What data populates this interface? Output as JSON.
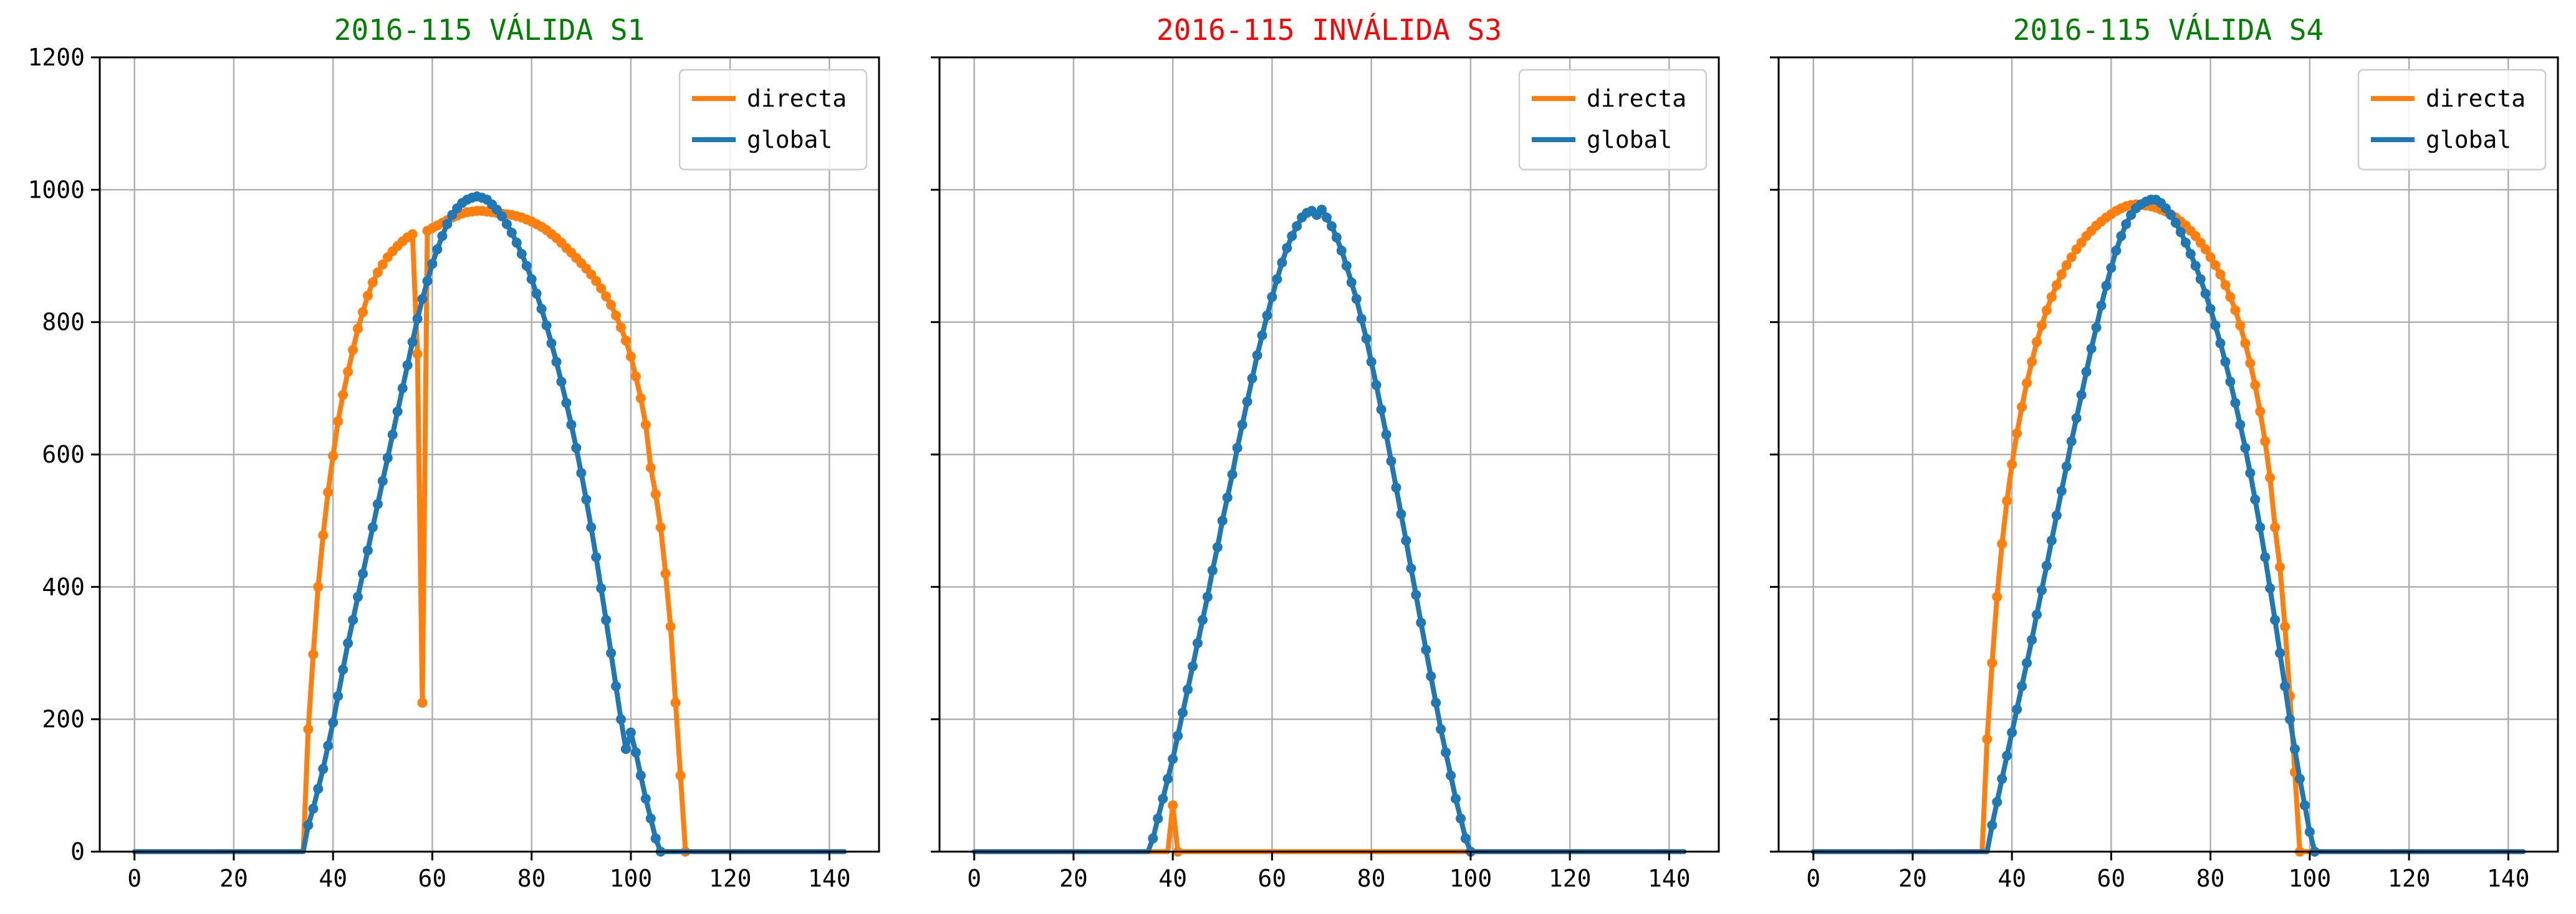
{
  "colors": {
    "directa": "#ff7f0e",
    "global": "#1f77b4",
    "valid": "#008000",
    "invalid": "#ff0000",
    "grid": "#b0b0b0"
  },
  "chart_data": [
    {
      "type": "line",
      "title": "2016-115 VÁLIDA S1",
      "title_color": "#008000",
      "xlabel": "",
      "ylabel": "",
      "xlim": [
        -7,
        150
      ],
      "ylim": [
        0,
        1200
      ],
      "xticks": [
        0,
        20,
        40,
        60,
        80,
        100,
        120,
        140
      ],
      "yticks": [
        0,
        200,
        400,
        600,
        800,
        1000,
        1200
      ],
      "grid": true,
      "legend": "top-right",
      "series": [
        {
          "name": "directa",
          "color": "#ff7f0e",
          "x": [
            0,
            34,
            35,
            36,
            37,
            38,
            39,
            40,
            41,
            42,
            43,
            44,
            45,
            46,
            47,
            48,
            49,
            50,
            51,
            52,
            53,
            54,
            55,
            56,
            57,
            58,
            59,
            60,
            61,
            62,
            63,
            64,
            65,
            66,
            67,
            68,
            69,
            70,
            71,
            72,
            73,
            74,
            75,
            76,
            77,
            78,
            79,
            80,
            81,
            82,
            83,
            84,
            85,
            86,
            87,
            88,
            89,
            90,
            91,
            92,
            93,
            94,
            95,
            96,
            97,
            98,
            99,
            100,
            101,
            102,
            103,
            104,
            105,
            106,
            107,
            108,
            109,
            110,
            111,
            112,
            113,
            114,
            115,
            143
          ],
          "y": [
            0,
            0,
            185,
            298,
            400,
            478,
            543,
            598,
            650,
            690,
            725,
            758,
            790,
            815,
            840,
            860,
            875,
            887,
            898,
            907,
            915,
            922,
            928,
            933,
            752,
            225,
            938,
            942,
            946,
            950,
            954,
            958,
            961,
            964,
            966,
            967,
            968,
            968,
            967,
            966,
            965,
            964,
            963,
            962,
            960,
            958,
            955,
            952,
            948,
            944,
            939,
            933,
            927,
            920,
            912,
            905,
            897,
            889,
            881,
            872,
            862,
            851,
            839,
            826,
            810,
            792,
            772,
            748,
            718,
            685,
            645,
            580,
            540,
            490,
            420,
            340,
            225,
            115,
            0,
            0,
            0,
            0,
            0,
            0
          ]
        },
        {
          "name": "global",
          "color": "#1f77b4",
          "x": [
            0,
            34,
            35,
            36,
            37,
            38,
            39,
            40,
            41,
            42,
            43,
            44,
            45,
            46,
            47,
            48,
            49,
            50,
            51,
            52,
            53,
            54,
            55,
            56,
            57,
            58,
            59,
            60,
            61,
            62,
            63,
            64,
            65,
            66,
            67,
            68,
            69,
            70,
            71,
            72,
            73,
            74,
            75,
            76,
            77,
            78,
            79,
            80,
            81,
            82,
            83,
            84,
            85,
            86,
            87,
            88,
            89,
            90,
            91,
            92,
            93,
            94,
            95,
            96,
            97,
            98,
            99,
            100,
            101,
            102,
            103,
            104,
            105,
            106,
            107,
            108,
            109,
            110,
            111,
            112,
            113,
            114,
            115,
            143
          ],
          "y": [
            0,
            0,
            40,
            65,
            95,
            125,
            160,
            195,
            235,
            275,
            315,
            350,
            385,
            420,
            455,
            490,
            525,
            560,
            595,
            630,
            665,
            700,
            735,
            770,
            805,
            835,
            862,
            888,
            910,
            930,
            948,
            962,
            972,
            980,
            985,
            988,
            990,
            988,
            985,
            978,
            970,
            960,
            948,
            935,
            920,
            903,
            885,
            865,
            843,
            820,
            795,
            768,
            740,
            710,
            678,
            645,
            610,
            572,
            532,
            490,
            445,
            398,
            350,
            300,
            250,
            200,
            155,
            180,
            150,
            115,
            80,
            50,
            20,
            0,
            0,
            0,
            0,
            0,
            0,
            0,
            0,
            0,
            0,
            0
          ]
        }
      ]
    },
    {
      "type": "line",
      "title": "2016-115 INVÁLIDA S3",
      "title_color": "#ff0000",
      "xlabel": "",
      "ylabel": "",
      "xlim": [
        -7,
        150
      ],
      "ylim": [
        0,
        1200
      ],
      "xticks": [
        0,
        20,
        40,
        60,
        80,
        100,
        120,
        140
      ],
      "yticks": [
        0,
        200,
        400,
        600,
        800,
        1000,
        1200
      ],
      "grid": true,
      "legend": "top-right",
      "series": [
        {
          "name": "directa",
          "color": "#ff7f0e",
          "x": [
            0,
            39,
            40,
            41,
            143
          ],
          "y": [
            0,
            0,
            70,
            0,
            0
          ]
        },
        {
          "name": "global",
          "color": "#1f77b4",
          "x": [
            0,
            35,
            36,
            37,
            38,
            39,
            40,
            41,
            42,
            43,
            44,
            45,
            46,
            47,
            48,
            49,
            50,
            51,
            52,
            53,
            54,
            55,
            56,
            57,
            58,
            59,
            60,
            61,
            62,
            63,
            64,
            65,
            66,
            67,
            68,
            69,
            70,
            71,
            72,
            73,
            74,
            75,
            76,
            77,
            78,
            79,
            80,
            81,
            82,
            83,
            84,
            85,
            86,
            87,
            88,
            89,
            90,
            91,
            92,
            93,
            94,
            95,
            96,
            97,
            98,
            99,
            100,
            101,
            102,
            103,
            104,
            105,
            106,
            107,
            108,
            109,
            110,
            111,
            112,
            113,
            143
          ],
          "y": [
            0,
            0,
            20,
            50,
            80,
            110,
            140,
            175,
            210,
            245,
            280,
            315,
            350,
            385,
            425,
            460,
            500,
            535,
            570,
            610,
            645,
            680,
            715,
            750,
            780,
            810,
            838,
            865,
            890,
            912,
            930,
            945,
            958,
            965,
            968,
            962,
            970,
            958,
            945,
            928,
            908,
            885,
            860,
            835,
            805,
            775,
            740,
            705,
            668,
            630,
            590,
            550,
            510,
            470,
            428,
            388,
            346,
            305,
            265,
            225,
            185,
            150,
            115,
            80,
            50,
            20,
            0,
            0,
            0,
            0,
            0,
            0,
            0,
            0,
            0,
            0,
            0,
            0,
            0,
            0,
            0
          ]
        }
      ]
    },
    {
      "type": "line",
      "title": "2016-115 VÁLIDA S4",
      "title_color": "#008000",
      "xlabel": "",
      "ylabel": "",
      "xlim": [
        -7,
        150
      ],
      "ylim": [
        0,
        1200
      ],
      "xticks": [
        0,
        20,
        40,
        60,
        80,
        100,
        120,
        140
      ],
      "yticks": [
        0,
        200,
        400,
        600,
        800,
        1000,
        1200
      ],
      "grid": true,
      "legend": "top-right",
      "series": [
        {
          "name": "directa",
          "color": "#ff7f0e",
          "x": [
            0,
            34,
            35,
            36,
            37,
            38,
            39,
            40,
            41,
            42,
            43,
            44,
            45,
            46,
            47,
            48,
            49,
            50,
            51,
            52,
            53,
            54,
            55,
            56,
            57,
            58,
            59,
            60,
            61,
            62,
            63,
            64,
            65,
            66,
            67,
            68,
            69,
            70,
            71,
            72,
            73,
            74,
            75,
            76,
            77,
            78,
            79,
            80,
            81,
            82,
            83,
            84,
            85,
            86,
            87,
            88,
            89,
            90,
            91,
            92,
            93,
            94,
            95,
            96,
            97,
            98,
            99,
            100,
            101,
            102,
            103,
            104,
            105,
            106,
            107,
            108,
            109,
            110,
            111,
            112,
            113,
            114,
            115,
            143
          ],
          "y": [
            0,
            0,
            170,
            285,
            385,
            465,
            530,
            585,
            632,
            672,
            708,
            740,
            770,
            795,
            818,
            838,
            856,
            872,
            886,
            898,
            910,
            920,
            930,
            938,
            946,
            952,
            958,
            963,
            968,
            972,
            975,
            977,
            978,
            977,
            976,
            975,
            973,
            970,
            967,
            963,
            958,
            952,
            946,
            938,
            930,
            920,
            910,
            898,
            886,
            872,
            856,
            838,
            818,
            795,
            768,
            738,
            705,
            665,
            620,
            565,
            490,
            430,
            340,
            235,
            120,
            0,
            0,
            0,
            0,
            0,
            0,
            0,
            0,
            0,
            0,
            0,
            0,
            0,
            0,
            0,
            0,
            0,
            0,
            0
          ]
        },
        {
          "name": "global",
          "color": "#1f77b4",
          "x": [
            0,
            35,
            36,
            37,
            38,
            39,
            40,
            41,
            42,
            43,
            44,
            45,
            46,
            47,
            48,
            49,
            50,
            51,
            52,
            53,
            54,
            55,
            56,
            57,
            58,
            59,
            60,
            61,
            62,
            63,
            64,
            65,
            66,
            67,
            68,
            69,
            70,
            71,
            72,
            73,
            74,
            75,
            76,
            77,
            78,
            79,
            80,
            81,
            82,
            83,
            84,
            85,
            86,
            87,
            88,
            89,
            90,
            91,
            92,
            93,
            94,
            95,
            96,
            97,
            98,
            99,
            100,
            101,
            102,
            103,
            104,
            105,
            106,
            107,
            108,
            109,
            110,
            111,
            112,
            113,
            114,
            143
          ],
          "y": [
            0,
            0,
            40,
            75,
            110,
            145,
            180,
            215,
            250,
            285,
            320,
            358,
            395,
            432,
            470,
            508,
            545,
            582,
            620,
            655,
            690,
            725,
            760,
            792,
            825,
            855,
            882,
            908,
            930,
            948,
            962,
            972,
            978,
            982,
            985,
            985,
            980,
            972,
            962,
            950,
            936,
            920,
            903,
            885,
            865,
            843,
            820,
            795,
            768,
            740,
            710,
            678,
            645,
            610,
            572,
            532,
            490,
            445,
            398,
            350,
            300,
            250,
            200,
            155,
            110,
            70,
            30,
            0,
            0,
            0,
            0,
            0,
            0,
            0,
            0,
            0,
            0,
            0,
            0,
            0,
            0,
            0
          ]
        }
      ]
    }
  ]
}
